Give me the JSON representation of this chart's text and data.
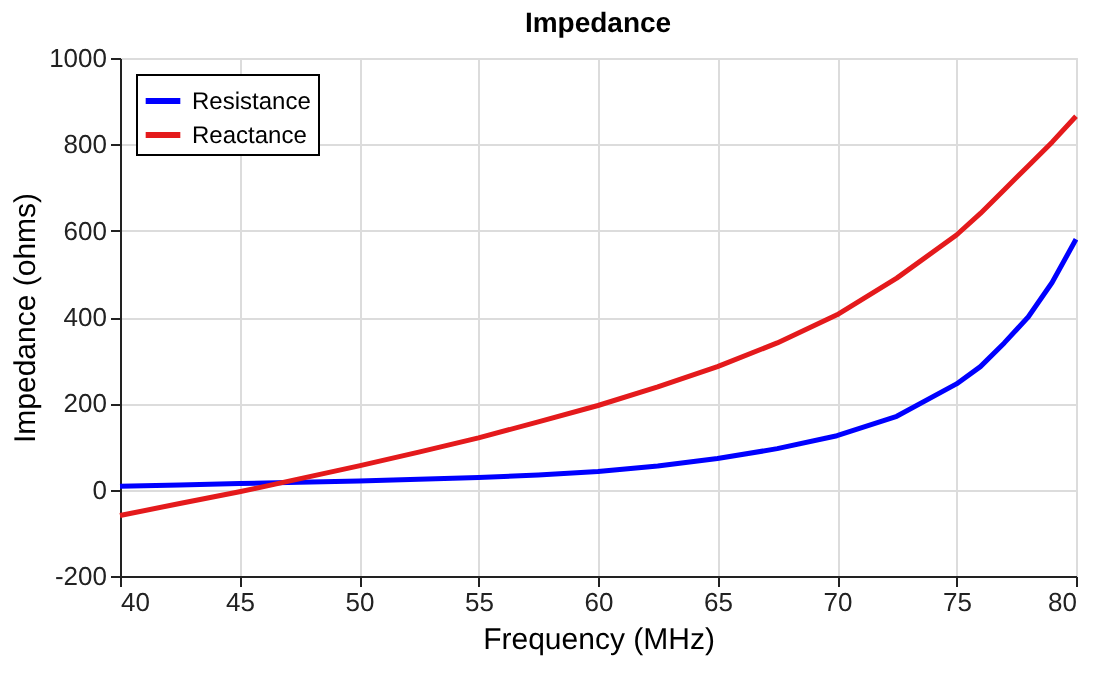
{
  "chart_data": {
    "type": "line",
    "title": "Impedance",
    "xlabel": "Frequency (MHz)",
    "ylabel": "Impedance (ohms)",
    "x": [
      40,
      42.5,
      45,
      47.5,
      50,
      52.5,
      55,
      57.5,
      60,
      62.5,
      65,
      67.5,
      70,
      72.5,
      75,
      76,
      77,
      78,
      79,
      80
    ],
    "series": [
      {
        "name": "Resistance",
        "color": "#0000ff",
        "values": [
          8,
          11,
          14,
          17,
          20,
          24,
          28,
          34,
          42,
          55,
          72,
          95,
          125,
          170,
          245,
          285,
          340,
          400,
          480,
          580
        ]
      },
      {
        "name": "Reactance",
        "color": "#e41a1c",
        "values": [
          -60,
          -32,
          -5,
          25,
          55,
          87,
          120,
          157,
          195,
          238,
          285,
          340,
          405,
          490,
          590,
          640,
          695,
          750,
          805,
          865
        ]
      }
    ],
    "xlim": [
      40,
      80
    ],
    "xticks": [
      40,
      45,
      50,
      55,
      60,
      65,
      70,
      75,
      80
    ],
    "ylim": [
      -200,
      1000
    ],
    "yticks": [
      -200,
      0,
      200,
      400,
      600,
      800,
      1000
    ],
    "grid": true,
    "legend": "top left",
    "marker": "none",
    "line_style": "solid"
  }
}
